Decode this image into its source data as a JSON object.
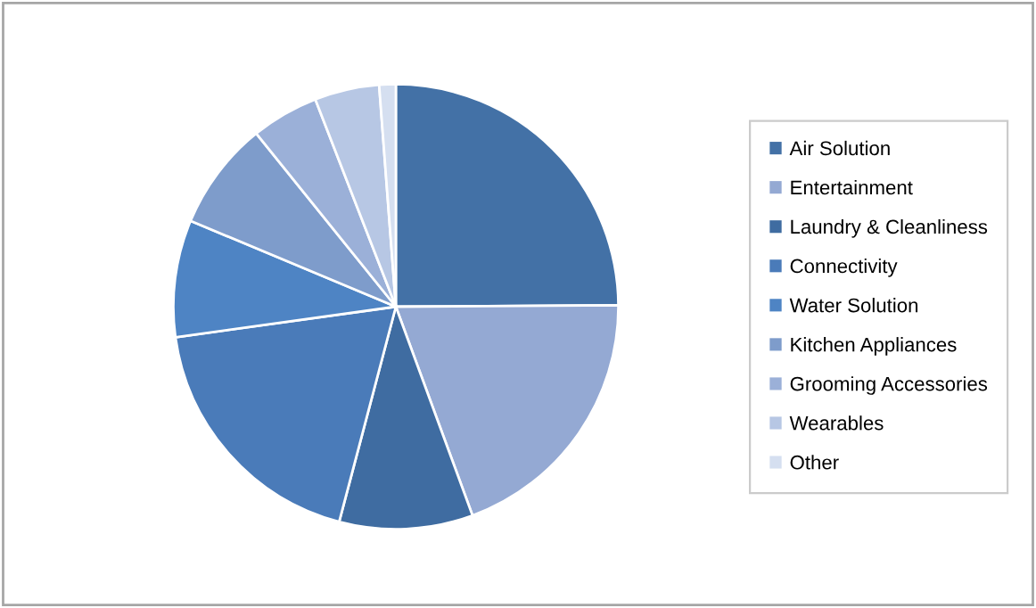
{
  "chart_data": {
    "type": "pie",
    "categories": [
      "Air Solution",
      "Entertainment",
      "Laundry & Cleanliness",
      "Connectivity",
      "Water Solution",
      "Kitchen Appliances",
      "Grooming Accessories",
      "Wearables",
      "Other"
    ],
    "values": [
      24.9,
      19.5,
      9.7,
      18.7,
      8.5,
      7.9,
      4.9,
      4.7,
      1.2
    ],
    "colors": [
      "#4371a6",
      "#94a9d3",
      "#3f6ca1",
      "#4a7bb9",
      "#4e84c4",
      "#7e9ccb",
      "#9bb0d8",
      "#b7c7e4",
      "#d5dff0"
    ],
    "legend": "right"
  }
}
